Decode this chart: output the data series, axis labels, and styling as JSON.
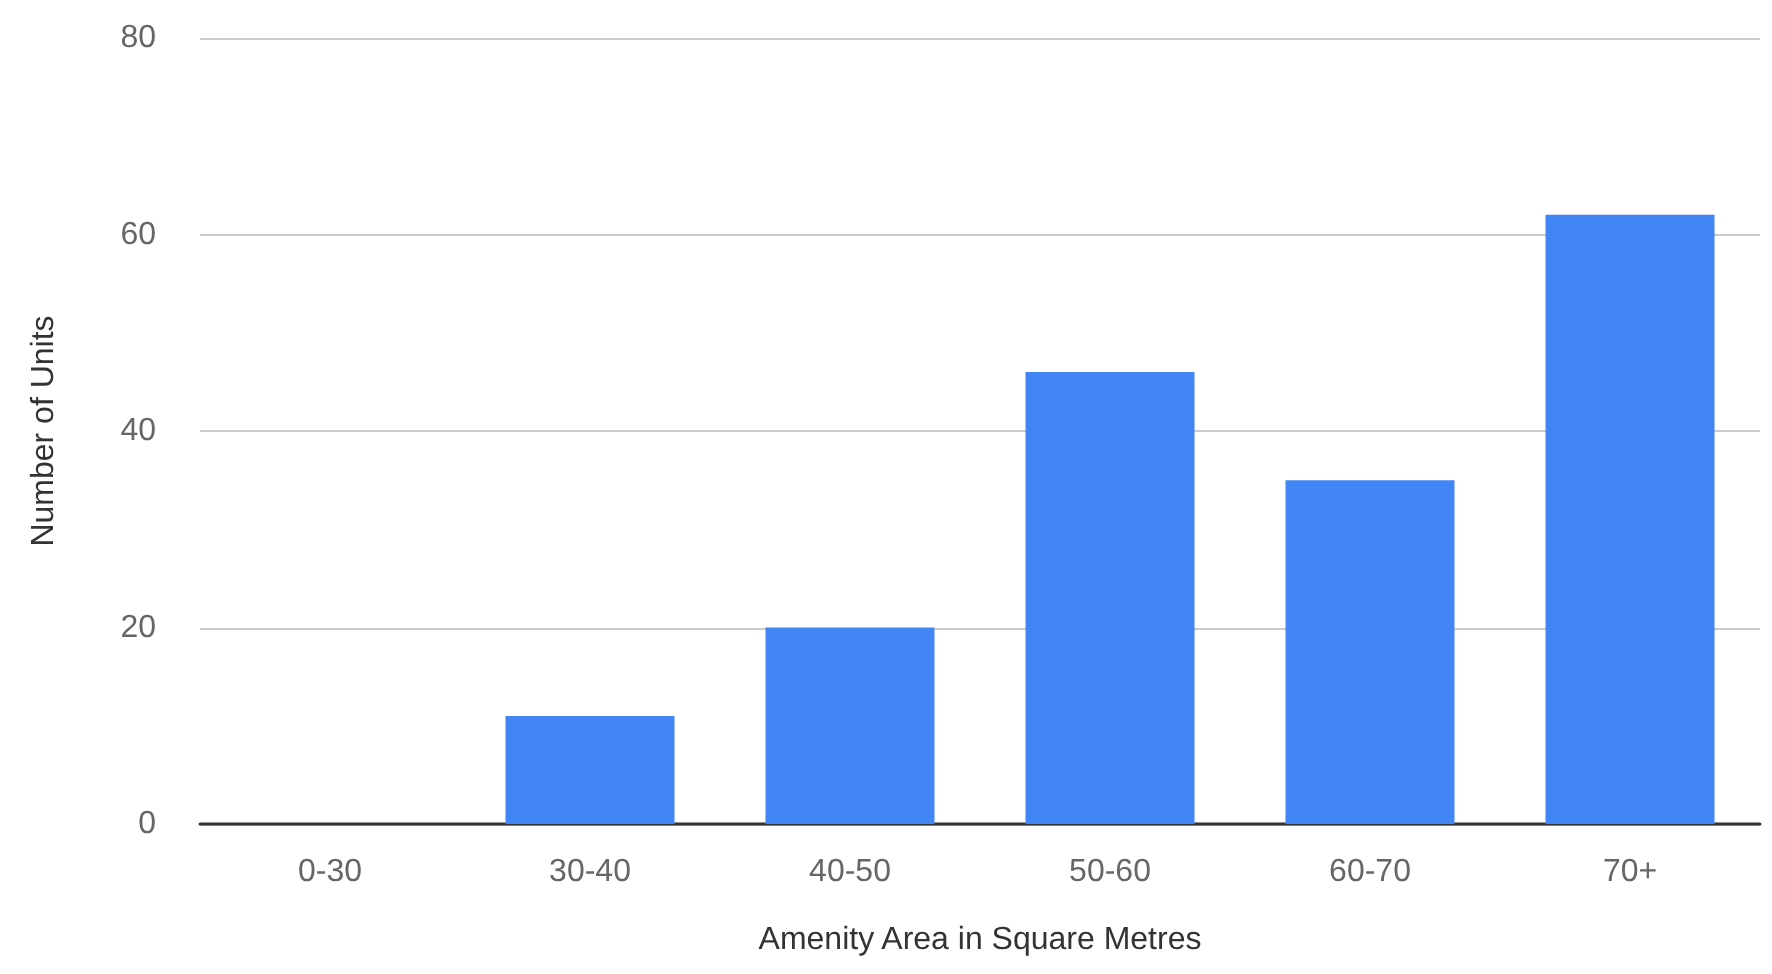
{
  "chart_data": {
    "type": "bar",
    "xlabel": "Amenity Area in Square Metres",
    "ylabel": "Number of Units",
    "categories": [
      "0-30",
      "30-40",
      "40-50",
      "50-60",
      "60-70",
      "70+"
    ],
    "values": [
      0,
      11,
      20,
      46,
      35,
      62
    ],
    "color": "#4285f4",
    "ylim": [
      0,
      80
    ],
    "yticks": [
      0,
      20,
      40,
      60,
      80
    ],
    "grid": "y"
  }
}
